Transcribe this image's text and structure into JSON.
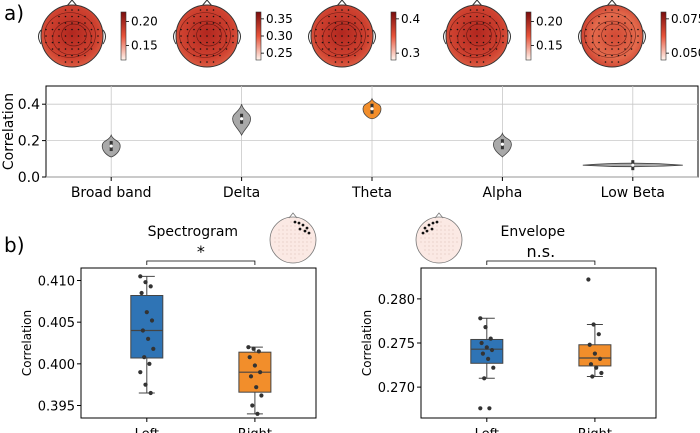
{
  "panel_a_label": "a)",
  "panel_b_label": "b)",
  "chart_data": [
    {
      "id": "topomaps",
      "type": "heatmap",
      "maps": [
        {
          "band": "Broad band",
          "colorbar_ticks": [
            "0.20",
            "0.15"
          ],
          "range": [
            0.12,
            0.22
          ]
        },
        {
          "band": "Delta",
          "colorbar_ticks": [
            "0.35",
            "0.30",
            "0.25"
          ],
          "range": [
            0.23,
            0.37
          ]
        },
        {
          "band": "Theta",
          "colorbar_ticks": [
            "0.4",
            "0.3"
          ],
          "range": [
            0.28,
            0.42
          ]
        },
        {
          "band": "Alpha",
          "colorbar_ticks": [
            "0.20",
            "0.15"
          ],
          "range": [
            0.12,
            0.22
          ]
        },
        {
          "band": "Low Beta",
          "colorbar_ticks": [
            "0.075",
            "0.050"
          ],
          "range": [
            0.045,
            0.08
          ]
        }
      ]
    },
    {
      "id": "violin",
      "type": "violin",
      "ylabel": "Correlation",
      "ylim": [
        0.0,
        0.5
      ],
      "yticks": [
        "0.0",
        "0.2",
        "0.4"
      ],
      "ytick_values": [
        0.0,
        0.2,
        0.4
      ],
      "grid": true,
      "categories": [
        "Broad band",
        "Delta",
        "Theta",
        "Alpha",
        "Low Beta"
      ],
      "series": [
        {
          "name": "Broad band",
          "median": 0.17,
          "min": 0.11,
          "max": 0.23,
          "color": "#a9a9a9"
        },
        {
          "name": "Delta",
          "median": 0.32,
          "min": 0.23,
          "max": 0.4,
          "color": "#a9a9a9"
        },
        {
          "name": "Theta",
          "median": 0.375,
          "min": 0.32,
          "max": 0.43,
          "color": "#f28e2b"
        },
        {
          "name": "Alpha",
          "median": 0.18,
          "min": 0.11,
          "max": 0.24,
          "color": "#a9a9a9"
        },
        {
          "name": "Low Beta",
          "median": 0.065,
          "min": 0.055,
          "max": 0.075,
          "color": "#a9a9a9"
        }
      ]
    },
    {
      "id": "spectrogram",
      "type": "box",
      "title": "Spectrogram",
      "significance": "*",
      "ylabel": "Correlation",
      "ylim": [
        0.3935,
        0.4115
      ],
      "yticks": [
        "0.395",
        "0.400",
        "0.405",
        "0.410"
      ],
      "ytick_values": [
        0.395,
        0.4,
        0.405,
        0.41
      ],
      "categories": [
        "Left",
        "Right"
      ],
      "series": [
        {
          "name": "Left",
          "color": "#2f74b5",
          "q1": 0.4007,
          "median": 0.404,
          "q3": 0.4082,
          "whisker_low": 0.3965,
          "whisker_high": 0.4105,
          "points": [
            0.4105,
            0.4098,
            0.4093,
            0.4085,
            0.4062,
            0.4052,
            0.404,
            0.403,
            0.4018,
            0.4008,
            0.4,
            0.399,
            0.3975,
            0.3965
          ]
        },
        {
          "name": "Right",
          "color": "#f28e2b",
          "q1": 0.3966,
          "median": 0.399,
          "q3": 0.4014,
          "whisker_low": 0.394,
          "whisker_high": 0.402,
          "points": [
            0.402,
            0.4018,
            0.4015,
            0.4008,
            0.3998,
            0.399,
            0.3985,
            0.3972,
            0.3962,
            0.395,
            0.394
          ]
        }
      ]
    },
    {
      "id": "envelope",
      "type": "box",
      "title": "Envelope",
      "significance": "n.s.",
      "ylabel": "Correlation",
      "ylim": [
        0.2665,
        0.2835
      ],
      "yticks": [
        "0.270",
        "0.275",
        "0.280"
      ],
      "ytick_values": [
        0.27,
        0.275,
        0.28
      ],
      "categories": [
        "Left",
        "Right"
      ],
      "series": [
        {
          "name": "Left",
          "color": "#2f74b5",
          "q1": 0.2727,
          "median": 0.2743,
          "q3": 0.2754,
          "whisker_low": 0.271,
          "whisker_high": 0.2778,
          "points": [
            0.2778,
            0.2768,
            0.2755,
            0.275,
            0.2745,
            0.2742,
            0.2738,
            0.2732,
            0.2722,
            0.271,
            0.2676,
            0.2676
          ]
        },
        {
          "name": "Right",
          "color": "#f28e2b",
          "q1": 0.2724,
          "median": 0.2733,
          "q3": 0.2748,
          "whisker_low": 0.2712,
          "whisker_high": 0.2771,
          "points": [
            0.2822,
            0.2771,
            0.276,
            0.2748,
            0.2738,
            0.2732,
            0.2726,
            0.2722,
            0.2716,
            0.2712
          ]
        }
      ]
    }
  ]
}
